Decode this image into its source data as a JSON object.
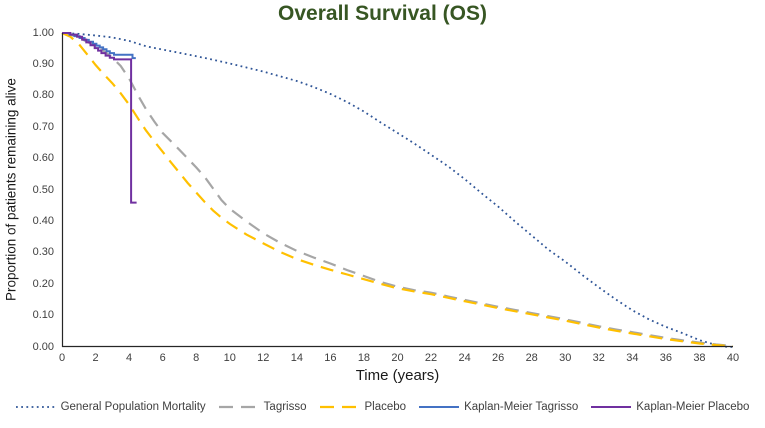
{
  "chart_data": {
    "type": "line",
    "title": "Overall Survival (OS)",
    "xlabel": "Time (years)",
    "ylabel": "Proportion of patients remaining alive",
    "xlim": [
      0,
      40
    ],
    "ylim": [
      0,
      1
    ],
    "x_ticks": [
      "0",
      "2",
      "4",
      "6",
      "8",
      "10",
      "12",
      "14",
      "16",
      "18",
      "20",
      "22",
      "24",
      "26",
      "28",
      "30",
      "32",
      "34",
      "36",
      "38",
      "40"
    ],
    "y_ticks": [
      "0.00",
      "0.10",
      "0.20",
      "0.30",
      "0.40",
      "0.50",
      "0.60",
      "0.70",
      "0.80",
      "0.90",
      "1.00"
    ],
    "grid": false,
    "legend_position": "bottom",
    "series": [
      {
        "name": "General Population Mortality",
        "color": "#2F5597",
        "style": "dotted",
        "points": [
          [
            0,
            1.0
          ],
          [
            1,
            0.997
          ],
          [
            2,
            0.992
          ],
          [
            3,
            0.986
          ],
          [
            4,
            0.975
          ],
          [
            5,
            0.958
          ],
          [
            6,
            0.947
          ],
          [
            7,
            0.937
          ],
          [
            8,
            0.926
          ],
          [
            9,
            0.915
          ],
          [
            10,
            0.903
          ],
          [
            11,
            0.89
          ],
          [
            12,
            0.877
          ],
          [
            13,
            0.862
          ],
          [
            14,
            0.847
          ],
          [
            15,
            0.828
          ],
          [
            16,
            0.806
          ],
          [
            17,
            0.78
          ],
          [
            18,
            0.75
          ],
          [
            19,
            0.715
          ],
          [
            20,
            0.682
          ],
          [
            21,
            0.648
          ],
          [
            22,
            0.612
          ],
          [
            23,
            0.576
          ],
          [
            24,
            0.535
          ],
          [
            25,
            0.49
          ],
          [
            26,
            0.447
          ],
          [
            27,
            0.4
          ],
          [
            28,
            0.355
          ],
          [
            29,
            0.31
          ],
          [
            30,
            0.272
          ],
          [
            31,
            0.23
          ],
          [
            32,
            0.19
          ],
          [
            33,
            0.152
          ],
          [
            34,
            0.117
          ],
          [
            35,
            0.088
          ],
          [
            36,
            0.064
          ],
          [
            37,
            0.044
          ],
          [
            38,
            0.022
          ],
          [
            39,
            0.006
          ],
          [
            39.5,
            0.001
          ],
          [
            40,
            0.0
          ]
        ]
      },
      {
        "name": "Tagrisso",
        "color": "#A6A6A6",
        "style": "dashed",
        "points": [
          [
            0,
            1.0
          ],
          [
            0.5,
            0.995
          ],
          [
            1,
            0.985
          ],
          [
            1.5,
            0.972
          ],
          [
            2,
            0.958
          ],
          [
            2.5,
            0.942
          ],
          [
            3,
            0.922
          ],
          [
            3.5,
            0.895
          ],
          [
            4,
            0.855
          ],
          [
            4.6,
            0.795
          ],
          [
            5,
            0.758
          ],
          [
            5.5,
            0.718
          ],
          [
            6,
            0.682
          ],
          [
            6.5,
            0.655
          ],
          [
            7,
            0.628
          ],
          [
            7.5,
            0.6
          ],
          [
            8,
            0.572
          ],
          [
            8.5,
            0.542
          ],
          [
            9,
            0.505
          ],
          [
            9.5,
            0.468
          ],
          [
            10,
            0.44
          ],
          [
            11,
            0.4
          ],
          [
            12,
            0.362
          ],
          [
            13,
            0.332
          ],
          [
            14,
            0.306
          ],
          [
            15,
            0.285
          ],
          [
            16,
            0.266
          ],
          [
            17,
            0.245
          ],
          [
            18,
            0.226
          ],
          [
            19,
            0.207
          ],
          [
            20,
            0.192
          ],
          [
            21,
            0.181
          ],
          [
            22,
            0.173
          ],
          [
            23,
            0.161
          ],
          [
            24,
            0.15
          ],
          [
            25,
            0.139
          ],
          [
            26,
            0.128
          ],
          [
            27,
            0.118
          ],
          [
            28,
            0.108
          ],
          [
            29,
            0.098
          ],
          [
            30,
            0.088
          ],
          [
            31,
            0.077
          ],
          [
            32,
            0.066
          ],
          [
            33,
            0.056
          ],
          [
            34,
            0.047
          ],
          [
            35,
            0.038
          ],
          [
            36,
            0.029
          ],
          [
            37,
            0.021
          ],
          [
            38,
            0.014
          ],
          [
            39,
            0.008
          ],
          [
            39.8,
            0.004
          ]
        ]
      },
      {
        "name": "Placebo",
        "color": "#FFC000",
        "style": "dashed",
        "points": [
          [
            0,
            1.0
          ],
          [
            0.5,
            0.988
          ],
          [
            1,
            0.965
          ],
          [
            1.5,
            0.932
          ],
          [
            2,
            0.898
          ],
          [
            2.5,
            0.868
          ],
          [
            3,
            0.84
          ],
          [
            3.5,
            0.808
          ],
          [
            4,
            0.772
          ],
          [
            4.6,
            0.722
          ],
          [
            5,
            0.69
          ],
          [
            5.5,
            0.655
          ],
          [
            6,
            0.622
          ],
          [
            6.5,
            0.588
          ],
          [
            7,
            0.555
          ],
          [
            7.5,
            0.522
          ],
          [
            8,
            0.492
          ],
          [
            8.5,
            0.462
          ],
          [
            9,
            0.435
          ],
          [
            9.5,
            0.412
          ],
          [
            10,
            0.392
          ],
          [
            11,
            0.358
          ],
          [
            12,
            0.33
          ],
          [
            13,
            0.303
          ],
          [
            14,
            0.28
          ],
          [
            15,
            0.262
          ],
          [
            16,
            0.246
          ],
          [
            17,
            0.231
          ],
          [
            18,
            0.216
          ],
          [
            19,
            0.201
          ],
          [
            20,
            0.187
          ],
          [
            21,
            0.177
          ],
          [
            22,
            0.168
          ],
          [
            23,
            0.157
          ],
          [
            24,
            0.146
          ],
          [
            25,
            0.135
          ],
          [
            26,
            0.124
          ],
          [
            27,
            0.114
          ],
          [
            28,
            0.104
          ],
          [
            29,
            0.094
          ],
          [
            30,
            0.084
          ],
          [
            31,
            0.073
          ],
          [
            32,
            0.062
          ],
          [
            33,
            0.052
          ],
          [
            34,
            0.043
          ],
          [
            35,
            0.034
          ],
          [
            36,
            0.025
          ],
          [
            37,
            0.018
          ],
          [
            38,
            0.011
          ],
          [
            39,
            0.006
          ],
          [
            40,
            0.002
          ]
        ]
      },
      {
        "name": "Kaplan-Meier Tagrisso",
        "color": "#4472C4",
        "style": "solid",
        "points": [
          [
            0,
            1.0
          ],
          [
            0.45,
            1.0
          ],
          [
            0.45,
            0.995
          ],
          [
            0.75,
            0.995
          ],
          [
            0.75,
            0.99
          ],
          [
            1.05,
            0.99
          ],
          [
            1.05,
            0.984
          ],
          [
            1.35,
            0.984
          ],
          [
            1.35,
            0.978
          ],
          [
            1.6,
            0.978
          ],
          [
            1.6,
            0.972
          ],
          [
            1.85,
            0.972
          ],
          [
            1.85,
            0.966
          ],
          [
            2.05,
            0.966
          ],
          [
            2.05,
            0.96
          ],
          [
            2.25,
            0.96
          ],
          [
            2.25,
            0.954
          ],
          [
            2.45,
            0.954
          ],
          [
            2.45,
            0.948
          ],
          [
            2.65,
            0.948
          ],
          [
            2.65,
            0.942
          ],
          [
            2.85,
            0.942
          ],
          [
            2.85,
            0.936
          ],
          [
            3.1,
            0.936
          ],
          [
            3.1,
            0.931
          ],
          [
            4.2,
            0.931
          ],
          [
            4.2,
            0.92
          ],
          [
            4.4,
            0.92
          ]
        ]
      },
      {
        "name": "Kaplan-Meier Placebo",
        "color": "#7030A0",
        "style": "solid",
        "points": [
          [
            0,
            1.0
          ],
          [
            0.5,
            1.0
          ],
          [
            0.5,
            0.995
          ],
          [
            0.9,
            0.995
          ],
          [
            0.9,
            0.988
          ],
          [
            1.2,
            0.988
          ],
          [
            1.2,
            0.979
          ],
          [
            1.45,
            0.979
          ],
          [
            1.45,
            0.97
          ],
          [
            1.7,
            0.97
          ],
          [
            1.7,
            0.961
          ],
          [
            1.95,
            0.961
          ],
          [
            1.95,
            0.952
          ],
          [
            2.15,
            0.952
          ],
          [
            2.15,
            0.944
          ],
          [
            2.35,
            0.944
          ],
          [
            2.35,
            0.936
          ],
          [
            2.6,
            0.936
          ],
          [
            2.6,
            0.928
          ],
          [
            2.85,
            0.928
          ],
          [
            2.85,
            0.921
          ],
          [
            3.1,
            0.921
          ],
          [
            3.1,
            0.916
          ],
          [
            4.12,
            0.916
          ],
          [
            4.12,
            0.46
          ],
          [
            4.45,
            0.46
          ]
        ]
      }
    ]
  },
  "colors": {
    "title": "#375623",
    "axis_line": "#262626",
    "tick_text": "#404040",
    "background": "#FFFFFF"
  }
}
